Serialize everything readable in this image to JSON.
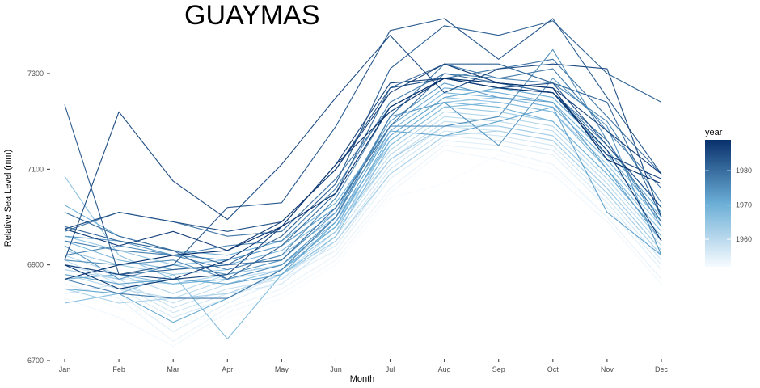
{
  "chart_data": {
    "type": "line",
    "title": "GUAYMAS",
    "xlabel": "Month",
    "ylabel": "Relative Sea Level (mm)",
    "categories": [
      "Jan",
      "Feb",
      "Mar",
      "Apr",
      "May",
      "Jun",
      "Jul",
      "Aug",
      "Sep",
      "Oct",
      "Nov",
      "Dec"
    ],
    "ylim": [
      6700,
      7420
    ],
    "yticks": [
      6700,
      6900,
      7100,
      7300
    ],
    "grid": false,
    "legend": {
      "title": "year",
      "type": "colorbar",
      "position": "right",
      "range": [
        1952,
        1989
      ],
      "ticks": [
        1960,
        1970,
        1980
      ],
      "color_low": "#f7fbff",
      "color_high": "#08306b"
    },
    "series": [
      {
        "year": 1952,
        "values": [
          6848,
          6810,
          6780,
          6790,
          6830,
          6900,
          7040,
          7070,
          7130,
          7100,
          7000,
          6870
        ]
      },
      {
        "year": 1953,
        "values": [
          6830,
          6790,
          6730,
          6800,
          6840,
          6910,
          7050,
          7140,
          7120,
          7090,
          6990,
          6860
        ]
      },
      {
        "year": 1954,
        "values": [
          6860,
          6830,
          6740,
          6810,
          6850,
          6920,
          7060,
          7150,
          7140,
          7110,
          7000,
          6870
        ]
      },
      {
        "year": 1955,
        "values": [
          6870,
          6840,
          6760,
          6820,
          6870,
          6930,
          7080,
          7160,
          7150,
          7130,
          7020,
          6890
        ]
      },
      {
        "year": 1956,
        "values": [
          6880,
          6850,
          6790,
          6830,
          6880,
          6940,
          7090,
          7170,
          7160,
          7140,
          7030,
          6900
        ]
      },
      {
        "year": 1957,
        "values": [
          6840,
          6860,
          6800,
          6840,
          6860,
          6950,
          7100,
          7180,
          7170,
          7150,
          7040,
          6910
        ]
      },
      {
        "year": 1958,
        "values": [
          6900,
          6870,
          6810,
          6850,
          6870,
          6960,
          7110,
          7190,
          7180,
          7160,
          7050,
          6920
        ]
      },
      {
        "year": 1959,
        "values": [
          6910,
          6860,
          6820,
          6860,
          6880,
          6970,
          7120,
          7200,
          7190,
          7170,
          7060,
          6930
        ]
      },
      {
        "year": 1960,
        "values": [
          6880,
          6850,
          6830,
          6870,
          6890,
          6980,
          7130,
          7210,
          7200,
          7180,
          7070,
          6940
        ]
      },
      {
        "year": 1961,
        "values": [
          6920,
          6880,
          6840,
          6880,
          6900,
          6990,
          7140,
          7220,
          7210,
          7190,
          7080,
          6950
        ]
      },
      {
        "year": 1962,
        "values": [
          6850,
          6820,
          6830,
          6840,
          6880,
          6950,
          7090,
          7170,
          7180,
          7160,
          7050,
          6920
        ]
      },
      {
        "year": 1963,
        "values": [
          6890,
          6870,
          6860,
          6880,
          6900,
          6980,
          7120,
          7190,
          7190,
          7170,
          7060,
          6930
        ]
      },
      {
        "year": 1964,
        "values": [
          6930,
          6900,
          6880,
          6890,
          6920,
          7000,
          7150,
          7230,
          7220,
          7200,
          7090,
          6960
        ]
      },
      {
        "year": 1965,
        "values": [
          6960,
          6930,
          6900,
          6910,
          6940,
          7020,
          7170,
          7250,
          7240,
          7220,
          7110,
          6980
        ]
      },
      {
        "year": 1966,
        "values": [
          7085,
          6920,
          6870,
          6860,
          6890,
          6970,
          7160,
          7240,
          7250,
          7230,
          7120,
          6990
        ]
      },
      {
        "year": 1967,
        "values": [
          6820,
          6840,
          6880,
          6745,
          6880,
          6960,
          7150,
          7230,
          7240,
          7220,
          7100,
          6970
        ]
      },
      {
        "year": 1968,
        "values": [
          6950,
          6910,
          6890,
          6900,
          6930,
          7010,
          7180,
          7260,
          7250,
          7230,
          7120,
          6990
        ]
      },
      {
        "year": 1969,
        "values": [
          6870,
          6880,
          6860,
          6870,
          6900,
          6990,
          7160,
          7240,
          7230,
          7200,
          7090,
          6960
        ]
      },
      {
        "year": 1970,
        "values": [
          7025,
          6960,
          6930,
          6920,
          6950,
          7030,
          7190,
          7270,
          7260,
          7240,
          7130,
          7000
        ]
      },
      {
        "year": 1971,
        "values": [
          6850,
          6840,
          6780,
          6830,
          6890,
          6980,
          7170,
          7250,
          7270,
          7250,
          7140,
          7010
        ]
      },
      {
        "year": 1972,
        "values": [
          6880,
          6860,
          6870,
          6860,
          6880,
          6990,
          7180,
          7170,
          7200,
          7230,
          7010,
          6920
        ]
      },
      {
        "year": 1973,
        "values": [
          6960,
          6950,
          6920,
          6910,
          6940,
          7020,
          7200,
          7280,
          7250,
          7240,
          7100,
          6950
        ]
      },
      {
        "year": 1974,
        "values": [
          6940,
          6870,
          6900,
          6880,
          6910,
          7010,
          7210,
          7240,
          7150,
          7290,
          7190,
          6920
        ]
      },
      {
        "year": 1975,
        "values": [
          6910,
          6900,
          6910,
          6870,
          6900,
          7000,
          7190,
          7190,
          7210,
          7350,
          7160,
          6980
        ]
      },
      {
        "year": 1976,
        "values": [
          6920,
          6940,
          6920,
          6890,
          6920,
          7040,
          7230,
          7290,
          7280,
          7260,
          7150,
          7020
        ]
      },
      {
        "year": 1977,
        "values": [
          6950,
          6930,
          6920,
          6940,
          6950,
          7060,
          7240,
          7300,
          7290,
          7280,
          7200,
          7030
        ]
      },
      {
        "year": 1978,
        "values": [
          6870,
          6840,
          6830,
          6830,
          6890,
          7000,
          7210,
          7320,
          7290,
          7310,
          7180,
          7060
        ]
      },
      {
        "year": 1979,
        "values": [
          6970,
          7010,
          6990,
          6960,
          6970,
          7080,
          7230,
          7290,
          7310,
          7330,
          7210,
          7090
        ]
      },
      {
        "year": 1980,
        "values": [
          7010,
          6960,
          6930,
          6900,
          6910,
          7020,
          7190,
          7300,
          7280,
          7260,
          7160,
          6990
        ]
      },
      {
        "year": 1981,
        "values": [
          6980,
          6950,
          6930,
          6870,
          6940,
          7050,
          7270,
          7320,
          7320,
          7280,
          7240,
          7000
        ]
      },
      {
        "year": 1982,
        "values": [
          6900,
          6880,
          6890,
          6900,
          6960,
          7070,
          7310,
          7400,
          7380,
          7410,
          7300,
          7240
        ]
      },
      {
        "year": 1983,
        "values": [
          7235,
          6880,
          6900,
          7020,
          7030,
          7190,
          7390,
          7415,
          7330,
          7415,
          7250,
          7090
        ]
      },
      {
        "year": 1984,
        "values": [
          6975,
          7010,
          6990,
          6970,
          6990,
          7100,
          7270,
          7290,
          7270,
          7280,
          7150,
          7020
        ]
      },
      {
        "year": 1985,
        "values": [
          6910,
          7220,
          7075,
          6995,
          7110,
          7250,
          7380,
          7260,
          7310,
          7320,
          7310,
          7000
        ]
      },
      {
        "year": 1986,
        "values": [
          6900,
          6880,
          6870,
          6880,
          6980,
          7110,
          7280,
          7290,
          7270,
          7260,
          7130,
          7080
        ]
      },
      {
        "year": 1987,
        "values": [
          6975,
          6940,
          6970,
          6930,
          6990,
          7100,
          7260,
          7320,
          7280,
          7270,
          7180,
          7090
        ]
      },
      {
        "year": 1988,
        "values": [
          6900,
          6850,
          6870,
          6910,
          6980,
          7110,
          7220,
          7290,
          7270,
          7260,
          7140,
          6950
        ]
      },
      {
        "year": 1989,
        "values": [
          6870,
          6900,
          6920,
          6930,
          6980,
          7050,
          7230,
          7290,
          7280,
          7270,
          7120,
          7070
        ]
      }
    ]
  }
}
